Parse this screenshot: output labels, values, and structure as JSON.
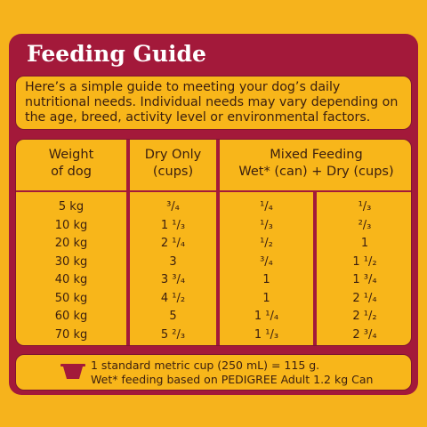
{
  "title": "Feeding Guide",
  "intro": "Here’s a simple guide to meeting your dog’s daily nutritional needs. Individual needs may vary depending on the age, breed, activity level or environmental factors.",
  "table": {
    "headers": {
      "weight": [
        "Weight",
        "of dog"
      ],
      "dry": [
        "Dry Only",
        "(cups)"
      ],
      "mixed": [
        "Mixed Feeding",
        "Wet* (can) + Dry (cups)"
      ]
    },
    "rows": [
      {
        "weight": "5 kg",
        "dry": "³/₄",
        "wet": "¹/₄",
        "mixdry": "¹/₃"
      },
      {
        "weight": "10 kg",
        "dry": "1 ¹/₃",
        "wet": "¹/₃",
        "mixdry": "²/₃"
      },
      {
        "weight": "20 kg",
        "dry": "2 ¹/₄",
        "wet": "¹/₂",
        "mixdry": "1"
      },
      {
        "weight": "30 kg",
        "dry": "3",
        "wet": "³/₄",
        "mixdry": "1 ¹/₂"
      },
      {
        "weight": "40 kg",
        "dry": "3 ³/₄",
        "wet": "1",
        "mixdry": "1 ³/₄"
      },
      {
        "weight": "50 kg",
        "dry": "4 ¹/₂",
        "wet": "1",
        "mixdry": "2 ¹/₄"
      },
      {
        "weight": "60 kg",
        "dry": "5",
        "wet": "1 ¹/₄",
        "mixdry": "2 ¹/₂"
      },
      {
        "weight": "70 kg",
        "dry": "5 ²/₃",
        "wet": "1 ¹/₃",
        "mixdry": "2 ³/₄"
      }
    ]
  },
  "footer": {
    "icon": "bowl-icon",
    "lines": [
      "1 standard metric cup (250 mL) = 115 g.",
      "Wet* feeding based on PEDIGREE Adult 1.2 kg Can"
    ]
  },
  "colors": {
    "background": "#f6b31c",
    "panel": "#a3193a",
    "text": "#3a1e0f"
  }
}
